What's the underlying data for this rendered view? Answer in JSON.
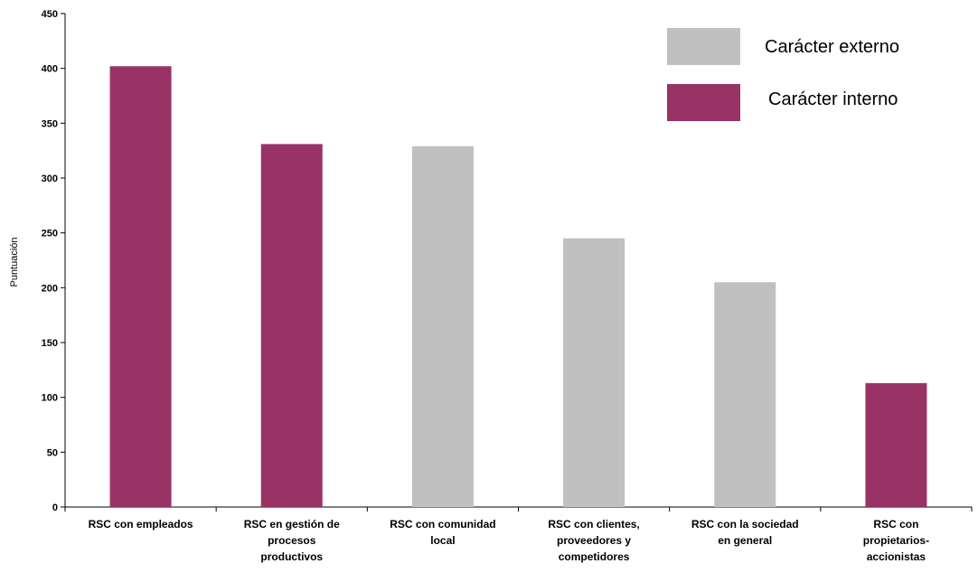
{
  "chart_data": {
    "type": "bar",
    "categories": [
      [
        "RSC con empleados"
      ],
      [
        "RSC en gestión de",
        "procesos",
        "productivos"
      ],
      [
        "RSC con comunidad",
        "local"
      ],
      [
        "RSC con clientes,",
        "proveedores y",
        "competidores"
      ],
      [
        "RSC con la sociedad",
        "en general"
      ],
      [
        "RSC con",
        "propietarios-",
        "accionistas"
      ]
    ],
    "values": [
      402,
      331,
      329,
      245,
      205,
      113
    ],
    "groups": [
      "interno",
      "interno",
      "externo",
      "externo",
      "externo",
      "interno"
    ],
    "ylabel": "Puntuación",
    "ylim": [
      0,
      450
    ],
    "yticks": [
      0,
      50,
      100,
      150,
      200,
      250,
      300,
      350,
      400,
      450
    ],
    "grid": false,
    "legend": {
      "placement": "top-right",
      "entries": [
        {
          "key": "externo",
          "label": "Carácter externo",
          "color": "#c0c0c0"
        },
        {
          "key": "interno",
          "label": "Carácter interno",
          "color": "#993366"
        }
      ]
    },
    "colors": {
      "externo": "#c0c0c0",
      "interno": "#993366",
      "axis": "#000000"
    }
  }
}
